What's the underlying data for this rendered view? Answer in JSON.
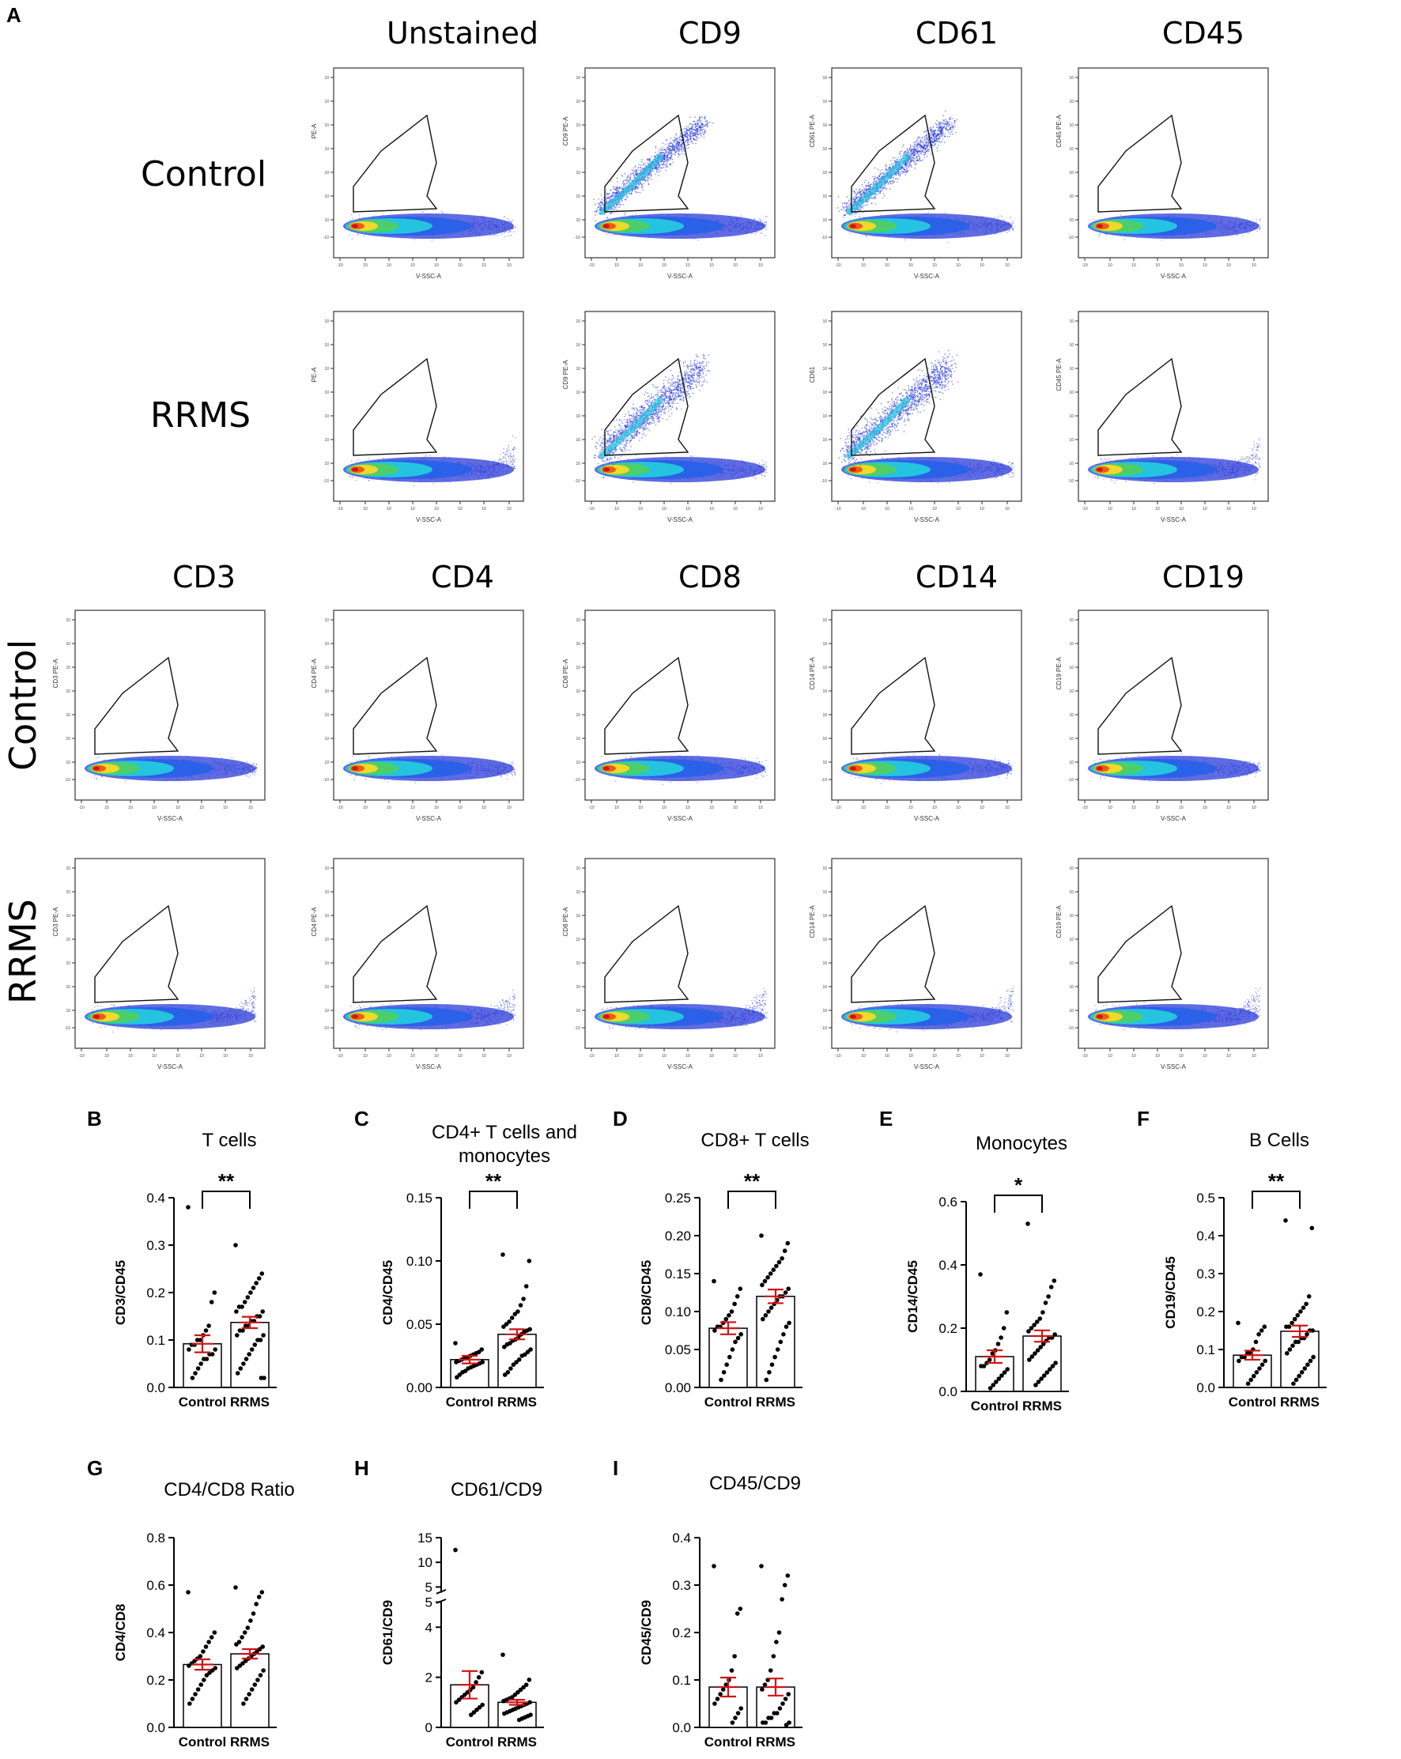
{
  "figure": {
    "panel_a_label": "A",
    "top_columns": [
      "Unstained",
      "CD9",
      "CD61",
      "CD45"
    ],
    "bottom_columns": [
      "CD3",
      "CD4",
      "CD8",
      "CD14",
      "CD19"
    ],
    "row_control": "Control",
    "row_rrms": "RRMS",
    "xaxis_label": "V-SSC-A",
    "flow_ylabels": {
      "Unstained": "PE-A",
      "CD9": "CD9 PE-A",
      "CD61_control": "CD61 PE-A",
      "CD61_rrms": "CD61",
      "CD45": "CD45 PE-A",
      "CD3": "CD3 PE-A",
      "CD4": "CD4 PE-A",
      "CD8": "CD8 PE-A",
      "CD14": "CD14 PE-A",
      "CD19": "CD19 PE-A"
    }
  },
  "chart_data": [
    {
      "panel": "B",
      "type": "bar",
      "title": "T cells",
      "ylabel": "CD3/CD45",
      "categories": [
        "Control",
        "RRMS"
      ],
      "values": [
        0.092,
        0.137
      ],
      "sem": [
        0.018,
        0.012
      ],
      "ylim": [
        0,
        0.4
      ],
      "yticks": [
        "0.0",
        "0.1",
        "0.2",
        "0.3",
        "0.4"
      ],
      "significance": "**",
      "points": [
        [
          0.38,
          0.2,
          0.18,
          0.13,
          0.12,
          0.11,
          0.1,
          0.1,
          0.09,
          0.09,
          0.08,
          0.08,
          0.07,
          0.07,
          0.06,
          0.06,
          0.05,
          0.04,
          0.03,
          0.02
        ],
        [
          0.3,
          0.24,
          0.23,
          0.22,
          0.21,
          0.2,
          0.19,
          0.18,
          0.17,
          0.17,
          0.16,
          0.16,
          0.15,
          0.15,
          0.14,
          0.14,
          0.13,
          0.13,
          0.12,
          0.12,
          0.11,
          0.11,
          0.1,
          0.1,
          0.09,
          0.08,
          0.07,
          0.06,
          0.05,
          0.04,
          0.03,
          0.02,
          0.02
        ]
      ]
    },
    {
      "panel": "C",
      "type": "bar",
      "title": "CD4+ T cells and monocytes",
      "ylabel": "CD4/CD45",
      "categories": [
        "Control",
        "RRMS"
      ],
      "values": [
        0.022,
        0.042
      ],
      "sem": [
        0.003,
        0.004
      ],
      "ylim": [
        0,
        0.15
      ],
      "yticks": [
        "0.00",
        "0.05",
        "0.10",
        "0.15"
      ],
      "significance": "**",
      "points": [
        [
          0.035,
          0.03,
          0.028,
          0.027,
          0.026,
          0.025,
          0.024,
          0.023,
          0.022,
          0.021,
          0.02,
          0.02,
          0.019,
          0.018,
          0.017,
          0.016,
          0.015,
          0.013,
          0.012,
          0.01,
          0.008
        ],
        [
          0.105,
          0.1,
          0.08,
          0.07,
          0.065,
          0.06,
          0.058,
          0.055,
          0.052,
          0.05,
          0.048,
          0.046,
          0.045,
          0.044,
          0.042,
          0.04,
          0.038,
          0.037,
          0.035,
          0.034,
          0.032,
          0.03,
          0.028,
          0.026,
          0.025,
          0.022,
          0.02,
          0.018,
          0.015,
          0.012,
          0.01
        ]
      ]
    },
    {
      "panel": "D",
      "type": "bar",
      "title": "CD8+ T cells",
      "ylabel": "CD8/CD45",
      "categories": [
        "Control",
        "RRMS"
      ],
      "values": [
        0.078,
        0.12
      ],
      "sem": [
        0.008,
        0.009
      ],
      "ylim": [
        0,
        0.25
      ],
      "yticks": [
        "0.00",
        "0.05",
        "0.10",
        "0.15",
        "0.20",
        "0.25"
      ],
      "significance": "**",
      "points": [
        [
          0.14,
          0.13,
          0.12,
          0.11,
          0.1,
          0.095,
          0.09,
          0.085,
          0.08,
          0.08,
          0.075,
          0.07,
          0.065,
          0.06,
          0.05,
          0.04,
          0.03,
          0.02,
          0.01
        ],
        [
          0.2,
          0.19,
          0.18,
          0.17,
          0.165,
          0.16,
          0.155,
          0.15,
          0.145,
          0.14,
          0.135,
          0.13,
          0.125,
          0.12,
          0.12,
          0.115,
          0.11,
          0.105,
          0.1,
          0.095,
          0.09,
          0.085,
          0.08,
          0.07,
          0.06,
          0.05,
          0.04,
          0.03,
          0.02,
          0.01
        ]
      ]
    },
    {
      "panel": "E",
      "type": "bar",
      "title": "Monocytes",
      "ylabel": "CD14/CD45",
      "categories": [
        "Control",
        "RRMS"
      ],
      "values": [
        0.11,
        0.175
      ],
      "sem": [
        0.02,
        0.018
      ],
      "ylim": [
        0,
        0.6
      ],
      "yticks": [
        "0.0",
        "0.2",
        "0.4",
        "0.6"
      ],
      "significance": "*",
      "points": [
        [
          0.37,
          0.25,
          0.2,
          0.17,
          0.15,
          0.13,
          0.12,
          0.1,
          0.09,
          0.08,
          0.08,
          0.07,
          0.06,
          0.05,
          0.04,
          0.03,
          0.02,
          0.01
        ],
        [
          0.53,
          0.35,
          0.33,
          0.3,
          0.28,
          0.25,
          0.23,
          0.22,
          0.21,
          0.2,
          0.19,
          0.18,
          0.17,
          0.17,
          0.16,
          0.15,
          0.14,
          0.13,
          0.12,
          0.11,
          0.1,
          0.09,
          0.08,
          0.07,
          0.06,
          0.05,
          0.04,
          0.03,
          0.02
        ]
      ]
    },
    {
      "panel": "F",
      "type": "bar",
      "title": "B Cells",
      "ylabel": "CD19/CD45",
      "categories": [
        "Control",
        "RRMS"
      ],
      "values": [
        0.085,
        0.148
      ],
      "sem": [
        0.012,
        0.015
      ],
      "ylim": [
        0,
        0.5
      ],
      "yticks": [
        "0.0",
        "0.1",
        "0.2",
        "0.3",
        "0.4",
        "0.5"
      ],
      "significance": "**",
      "points": [
        [
          0.17,
          0.16,
          0.15,
          0.14,
          0.12,
          0.1,
          0.09,
          0.09,
          0.08,
          0.08,
          0.07,
          0.07,
          0.06,
          0.05,
          0.04,
          0.03,
          0.02,
          0.01
        ],
        [
          0.44,
          0.42,
          0.24,
          0.22,
          0.21,
          0.2,
          0.19,
          0.18,
          0.17,
          0.16,
          0.16,
          0.15,
          0.15,
          0.14,
          0.13,
          0.13,
          0.12,
          0.12,
          0.11,
          0.1,
          0.09,
          0.08,
          0.07,
          0.06,
          0.05,
          0.04,
          0.03,
          0.02,
          0.01
        ]
      ]
    },
    {
      "panel": "G",
      "type": "bar",
      "title": "CD4/CD8 Ratio",
      "ylabel": "CD4/CD8",
      "categories": [
        "Control",
        "RRMS"
      ],
      "values": [
        0.265,
        0.31
      ],
      "sem": [
        0.022,
        0.02
      ],
      "ylim": [
        0,
        0.8
      ],
      "yticks": [
        "0.0",
        "0.2",
        "0.4",
        "0.6",
        "0.8"
      ],
      "significance": "",
      "points": [
        [
          0.57,
          0.4,
          0.38,
          0.36,
          0.34,
          0.32,
          0.3,
          0.29,
          0.28,
          0.27,
          0.26,
          0.25,
          0.24,
          0.23,
          0.22,
          0.2,
          0.18,
          0.16,
          0.14,
          0.12,
          0.1
        ],
        [
          0.59,
          0.57,
          0.55,
          0.52,
          0.48,
          0.45,
          0.42,
          0.4,
          0.38,
          0.36,
          0.35,
          0.34,
          0.33,
          0.32,
          0.31,
          0.3,
          0.29,
          0.28,
          0.27,
          0.26,
          0.25,
          0.24,
          0.22,
          0.2,
          0.18,
          0.16,
          0.14,
          0.12,
          0.1
        ]
      ]
    },
    {
      "panel": "H",
      "type": "bar",
      "title": "CD61/CD9",
      "ylabel": "CD61/CD9",
      "categories": [
        "Control",
        "RRMS"
      ],
      "values": [
        1.7,
        1.0
      ],
      "sem": [
        0.55,
        0.1
      ],
      "ylim": [
        0,
        15
      ],
      "yticks": [
        "0",
        "2",
        "4",
        "5",
        "10",
        "15"
      ],
      "axis_break": [
        5,
        5
      ],
      "significance": "",
      "points": [
        [
          12.5,
          2.2,
          2.0,
          1.8,
          1.6,
          1.5,
          1.4,
          1.3,
          1.2,
          1.1,
          1.0,
          0.9,
          0.8,
          0.7,
          0.6,
          0.5
        ],
        [
          2.9,
          1.9,
          1.7,
          1.6,
          1.5,
          1.4,
          1.3,
          1.2,
          1.15,
          1.1,
          1.05,
          1.0,
          0.95,
          0.9,
          0.85,
          0.8,
          0.75,
          0.7,
          0.65,
          0.6,
          0.55,
          0.5,
          0.45,
          0.4,
          0.35,
          0.3
        ]
      ]
    },
    {
      "panel": "I",
      "type": "bar",
      "title": "CD45/CD9",
      "ylabel": "CD45/CD9",
      "categories": [
        "Control",
        "RRMS"
      ],
      "values": [
        0.085,
        0.085
      ],
      "sem": [
        0.02,
        0.018
      ],
      "ylim": [
        0,
        0.4
      ],
      "yticks": [
        "0.0",
        "0.1",
        "0.2",
        "0.3",
        "0.4"
      ],
      "significance": "",
      "points": [
        [
          0.34,
          0.25,
          0.24,
          0.15,
          0.12,
          0.1,
          0.09,
          0.08,
          0.07,
          0.06,
          0.05,
          0.04,
          0.03,
          0.02,
          0.01
        ],
        [
          0.34,
          0.32,
          0.3,
          0.27,
          0.2,
          0.18,
          0.15,
          0.12,
          0.1,
          0.09,
          0.08,
          0.07,
          0.06,
          0.05,
          0.04,
          0.03,
          0.03,
          0.02,
          0.02,
          0.01,
          0.01,
          0.01,
          0.005
        ]
      ]
    }
  ]
}
